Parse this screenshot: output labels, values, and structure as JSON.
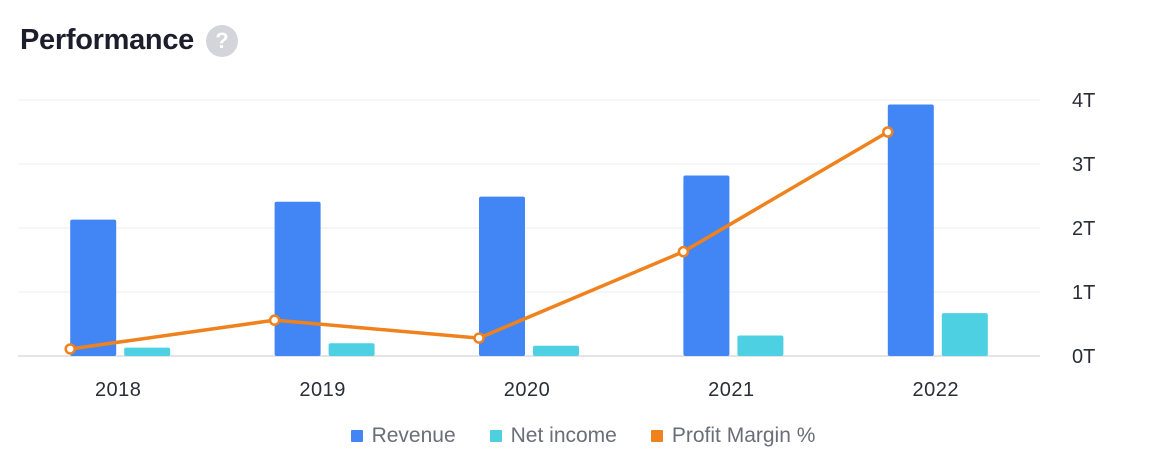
{
  "header": {
    "title": "Performance",
    "help_glyph": "?"
  },
  "colors": {
    "revenue": "#4285f4",
    "net_income": "#4dd0e1",
    "profit_margin": "#f0821e",
    "grid": "#ebedf0"
  },
  "chart_data": {
    "type": "bar",
    "categories": [
      "2018",
      "2019",
      "2020",
      "2021",
      "2022"
    ],
    "y_right": {
      "ticks": [
        "0T",
        "1T",
        "2T",
        "3T",
        "4T"
      ],
      "range": [
        0,
        4
      ],
      "unit": "T"
    },
    "series": [
      {
        "name": "Revenue",
        "type": "bar",
        "axis": "right",
        "values": [
          2.13,
          2.41,
          2.49,
          2.82,
          3.93
        ]
      },
      {
        "name": "Net income",
        "type": "bar",
        "axis": "right",
        "values": [
          0.13,
          0.2,
          0.16,
          0.32,
          0.67
        ]
      },
      {
        "name": "Profit Margin %",
        "type": "line",
        "axis": "unlabeled",
        "values": [
          0.11,
          0.56,
          0.28,
          1.63,
          3.5
        ]
      }
    ],
    "grid": true,
    "legend": "bottom-center"
  }
}
